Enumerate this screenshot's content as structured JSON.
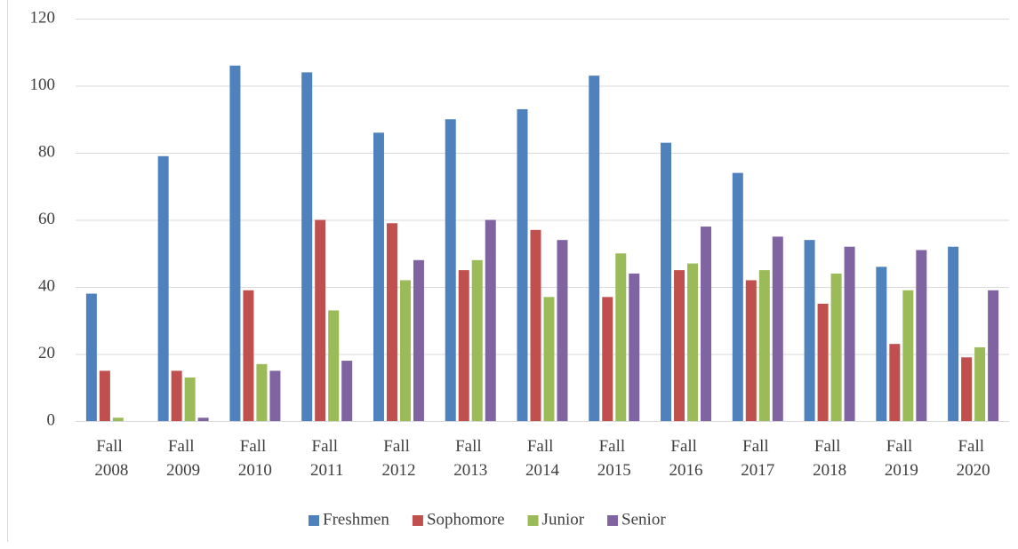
{
  "chart_data": {
    "type": "bar",
    "categories": [
      "Fall 2008",
      "Fall 2009",
      "Fall 2010",
      "Fall 2011",
      "Fall 2012",
      "Fall 2013",
      "Fall 2014",
      "Fall 2015",
      "Fall 2016",
      "Fall 2017",
      "Fall 2018",
      "Fall 2019",
      "Fall 2020"
    ],
    "series": [
      {
        "name": "Freshmen",
        "color": "#4f81bd",
        "values": [
          38,
          79,
          106,
          104,
          86,
          90,
          93,
          103,
          83,
          74,
          54,
          46,
          52
        ]
      },
      {
        "name": "Sophomore",
        "color": "#c0504d",
        "values": [
          15,
          15,
          39,
          60,
          59,
          45,
          57,
          37,
          45,
          42,
          35,
          23,
          19
        ]
      },
      {
        "name": "Junior",
        "color": "#9bbb59",
        "values": [
          1,
          13,
          17,
          33,
          42,
          48,
          37,
          50,
          47,
          45,
          44,
          39,
          22
        ]
      },
      {
        "name": "Senior",
        "color": "#8064a2",
        "values": [
          0,
          1,
          15,
          18,
          48,
          60,
          54,
          44,
          58,
          55,
          52,
          51,
          39
        ]
      }
    ],
    "ylim": [
      0,
      120
    ],
    "yticks": [
      0,
      20,
      40,
      60,
      80,
      100,
      120
    ],
    "grid": true,
    "legend": "bottom"
  }
}
